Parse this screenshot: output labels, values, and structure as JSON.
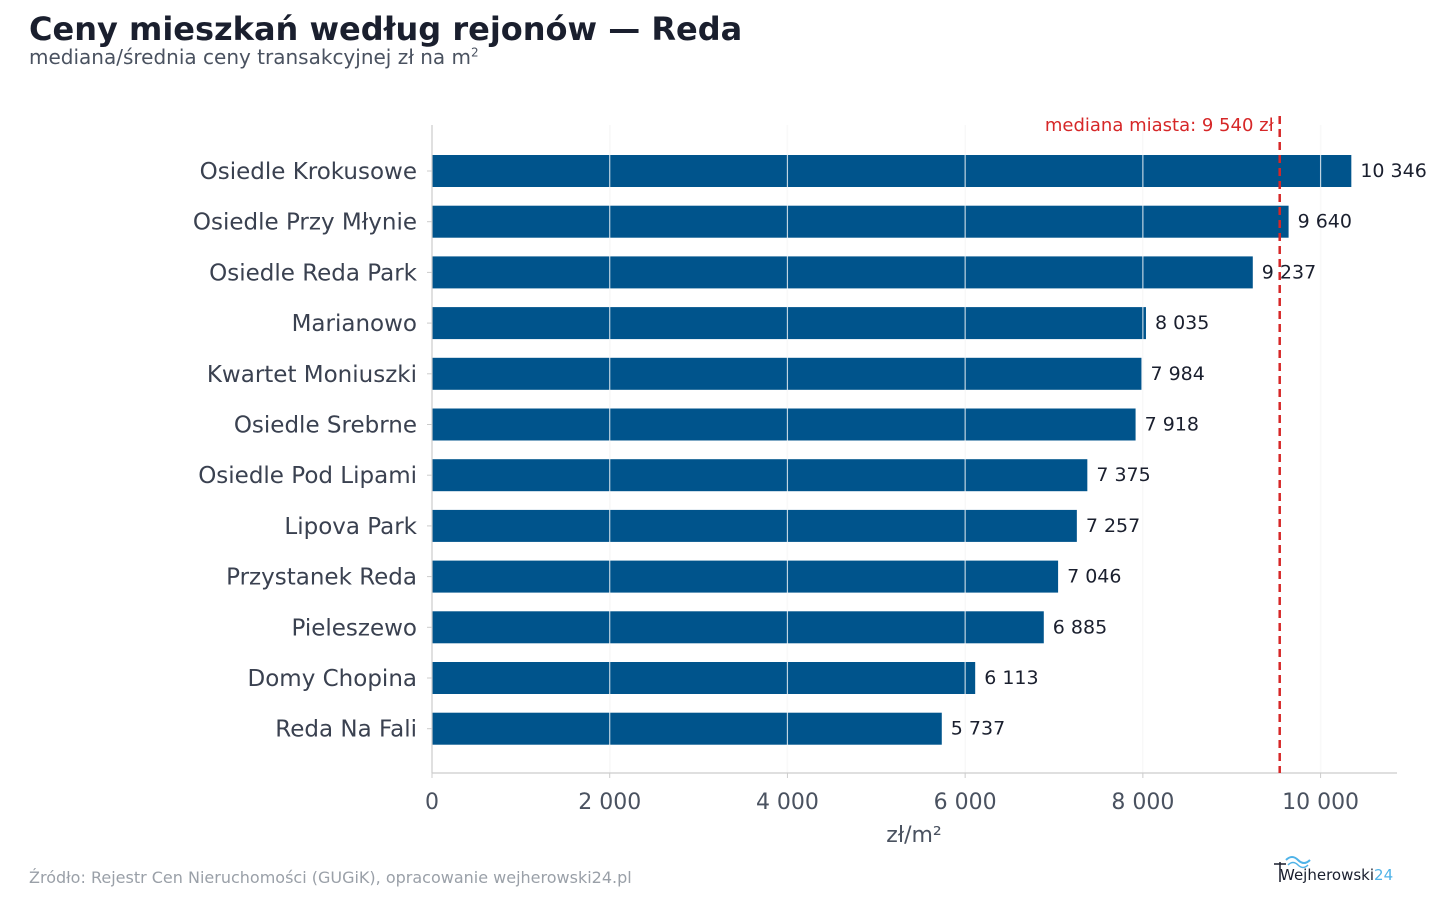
{
  "title": "Ceny mieszkań według rejonów — Reda",
  "subtitle": "mediana/średnia ceny transakcyjnej zł na m",
  "subtitle_sup": "2",
  "source": "Źródło: Rejestr Cen Nieruchomości (GUGiK), opracowanie wejherowski24.pl",
  "logo": {
    "name": "Wejherowski",
    "num": "24"
  },
  "colors": {
    "bar": "#00548c",
    "median": "#d62728",
    "grid": "#e6e6e6",
    "axis": "#cccccc"
  },
  "chart_data": {
    "type": "bar",
    "orientation": "horizontal",
    "categories": [
      "Osiedle Krokusowe",
      "Osiedle Przy Młynie",
      "Osiedle Reda Park",
      "Marianowo",
      "Kwartet Moniuszki",
      "Osiedle Srebrne",
      "Osiedle Pod Lipami",
      "Lipova Park",
      "Przystanek Reda",
      "Pieleszewo",
      "Domy Chopina",
      "Reda Na Fali"
    ],
    "values": [
      10346,
      9640,
      9237,
      8035,
      7984,
      7918,
      7375,
      7257,
      7046,
      6885,
      6113,
      5737
    ],
    "value_labels": [
      "10 346",
      "9 640",
      "9 237",
      "8 035",
      "7 984",
      "7 918",
      "7 375",
      "7 257",
      "7 046",
      "6 885",
      "6 113",
      "5 737"
    ],
    "xlabel": "zł/m²",
    "xlim": [
      0,
      10860
    ],
    "xticks": [
      0,
      2000,
      4000,
      6000,
      8000,
      10000
    ],
    "xtick_labels": [
      "0",
      "2 000",
      "4 000",
      "6 000",
      "8 000",
      "10 000"
    ],
    "grid": true,
    "reference_line": {
      "value": 9540,
      "label": "mediana miasta: 9 540 zł",
      "style": "dashed"
    }
  }
}
